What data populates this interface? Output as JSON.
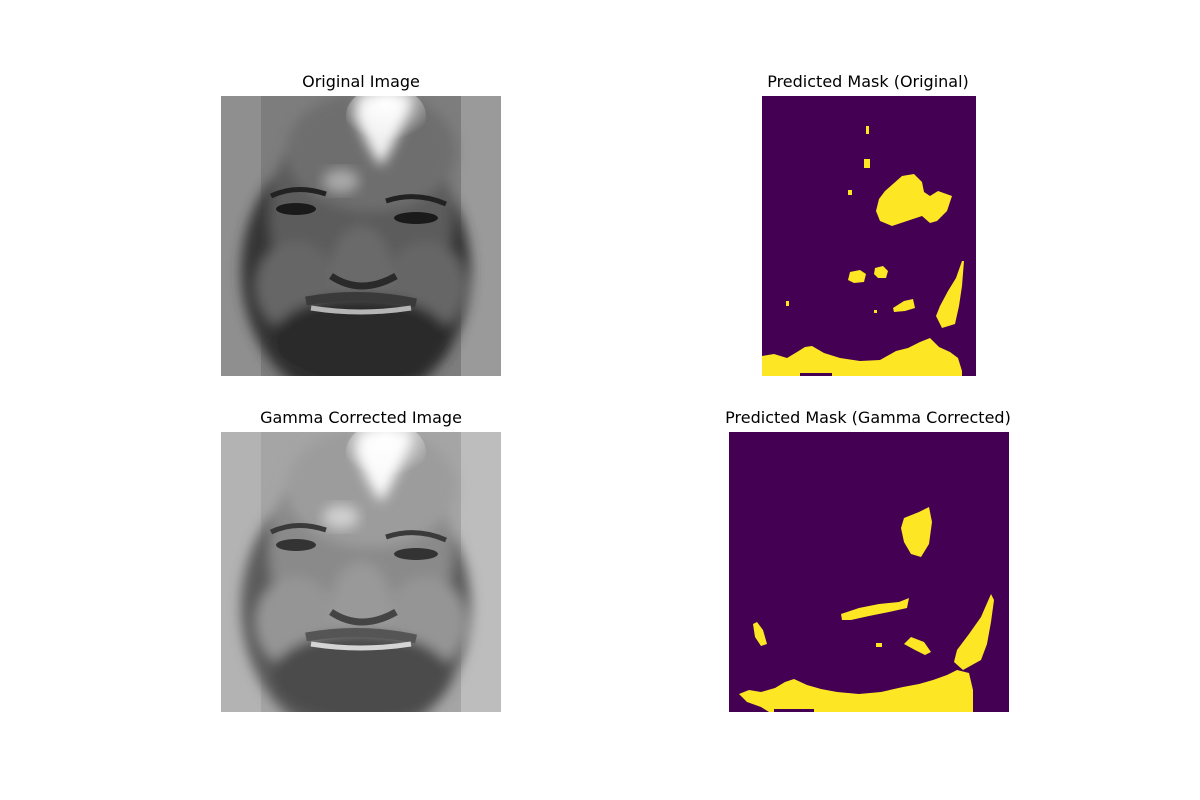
{
  "figure": {
    "panels": [
      {
        "title": "Original Image",
        "kind": "grayscale-face-photo"
      },
      {
        "title": "Predicted Mask (Original)",
        "kind": "segmentation-mask"
      },
      {
        "title": "Gamma Corrected Image",
        "kind": "grayscale-face-photo"
      },
      {
        "title": "Predicted Mask (Gamma Corrected)",
        "kind": "segmentation-mask"
      }
    ],
    "colors": {
      "mask_background": "#440154",
      "mask_foreground": "#fde725",
      "figure_background": "#ffffff"
    }
  }
}
